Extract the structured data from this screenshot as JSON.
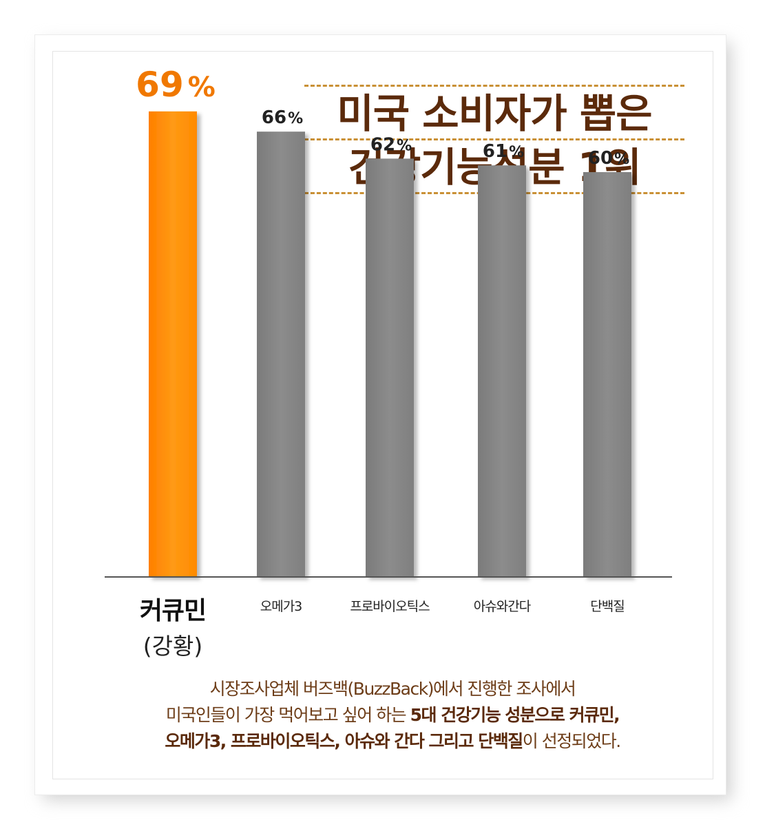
{
  "title": {
    "line1": "미국 소비자가 뽑은",
    "line2": "건강기능성분 1위"
  },
  "chart_data": {
    "type": "bar",
    "categories": [
      "커큐민",
      "오메가3",
      "프로바이오틱스",
      "아슈와간다",
      "단백질"
    ],
    "category_sub": [
      "(강황)",
      "",
      "",
      "",
      ""
    ],
    "values": [
      69,
      66,
      62,
      61,
      60
    ],
    "value_labels": [
      "69%",
      "66%",
      "62%",
      "61%",
      "60%"
    ],
    "highlight_index": 0,
    "colors": {
      "highlight": "#ff8c00",
      "default": "#858585",
      "highlight_label": "#f07800",
      "label": "#222222"
    },
    "ylim": [
      0,
      75
    ],
    "grid": false,
    "legend": "none"
  },
  "caption": {
    "line1": "시장조사업체 버즈백(BuzzBack)에서 진행한 조사에서",
    "line2_plain": "미국인들이 가장 먹어보고 싶어 하는 ",
    "line2_bold": "5대 건강기능 성분으로 커큐민,",
    "line3_bold": "오메가3, 프로바이오틱스, 아슈와 간다 그리고 단백질",
    "line3_plain": "이  선정되었다."
  }
}
